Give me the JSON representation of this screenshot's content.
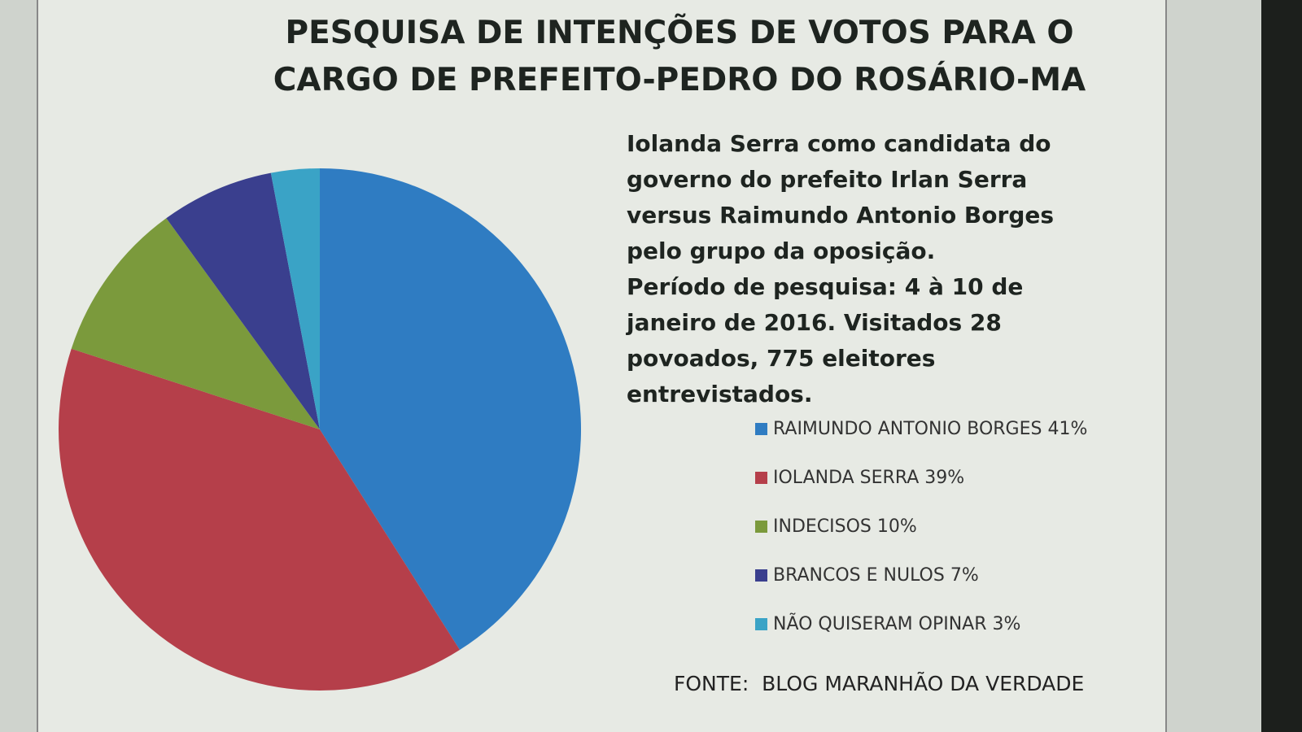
{
  "chart_data": {
    "type": "pie",
    "title": "PESQUISA DE INTENÇÕES DE VOTOS PARA O CARGO DE PREFEITO-PEDRO DO ROSÁRIO-MA",
    "annotations": [
      "Iolanda Serra como candidata do governo do prefeito Irlan Serra versus Raimundo Antonio Borges pelo grupo da oposição.",
      "Período de pesquisa: 4 à 10 de janeiro de 2016. Visitados 28 povoados, 775 eleitores entrevistados."
    ],
    "categories": [
      "RAIMUNDO ANTONIO BORGES 41%",
      "IOLANDA SERRA 39%",
      "INDECISOS 10%",
      "BRANCOS E NULOS 7%",
      "NÃO QUISERAM OPINAR 3%"
    ],
    "values": [
      41,
      39,
      10,
      7,
      3
    ],
    "colors": [
      "#2f7cc2",
      "#b53f4a",
      "#7b9a3c",
      "#3a3f8e",
      "#3aa3c6"
    ],
    "source": "FONTE:  BLOG MARANHÃO DA VERDADE"
  }
}
